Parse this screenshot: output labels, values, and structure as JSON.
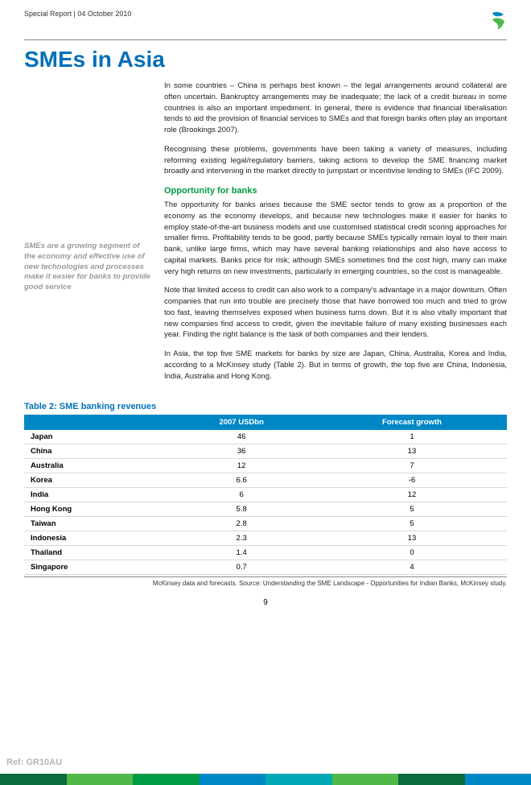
{
  "header": {
    "report_line": "Special Report | 04 October 2010"
  },
  "title": "SMEs in Asia",
  "sidebar": {
    "quote": "SMEs are a growing segment of the economy and effective use of new technologies and processes make it easier for banks to provide good service"
  },
  "body": {
    "p1": "In some countries – China is perhaps best known – the legal arrangements around collateral are often uncertain. Bankruptcy arrangements may be inadequate; the lack of a credit bureau in some countries is also an important impediment. In general, there is evidence that financial liberalisation tends to aid the provision of financial services to SMEs and that foreign banks often play an important role (Brookings 2007).",
    "p2": "Recognising these problems, governments have been taking a variety of measures, including reforming existing legal/regulatory barriers, taking actions to develop the SME financing market broadly and intervening in the market directly to jumpstart or incentivise lending to SMEs (IFC 2009).",
    "h1": "Opportunity for banks",
    "p3": "The opportunity for banks arises because the SME sector tends to grow as a proportion of the economy as the economy develops, and because new technologies make it easier for banks to employ state-of-the-art business models and use customised statistical credit scoring approaches for smaller firms. Profitability tends to be good, partly because SMEs typically remain loyal to their main bank, unlike large firms, which may have several banking relationships and also have access to capital markets. Banks price for risk; although SMEs sometimes find the cost high, many can make very high returns on new investments, particularly in emerging countries, so the cost is manageable.",
    "p4": "Note that limited access to credit can also work to a company's advantage in a major downturn. Often companies that run into trouble are precisely those that have borrowed too much and tried to grow too fast, leaving themselves exposed when business turns down. But it is also vitally important that new companies find access to credit, given the inevitable failure of many existing businesses each year. Finding the right balance is the task of both companies and their lenders.",
    "p5": "In Asia, the top five SME markets for banks by size are Japan, China, Australia, Korea and India, according to a McKinsey study (Table 2). But in terms of growth, the top five are China, Indonesia, India, Australia and Hong Kong."
  },
  "table": {
    "title": "Table 2: SME banking revenues",
    "header_bg": "#0088c6",
    "header_fg": "#ffffff",
    "row_border": "#d8d8d8",
    "columns": [
      "",
      "2007 USDbn",
      "Forecast growth"
    ],
    "rows": [
      [
        "Japan",
        "46",
        "1"
      ],
      [
        "China",
        "36",
        "13"
      ],
      [
        "Australia",
        "12",
        "7"
      ],
      [
        "Korea",
        "6.6",
        "-6"
      ],
      [
        "India",
        "6",
        "12"
      ],
      [
        "Hong Kong",
        "5.8",
        "5"
      ],
      [
        "Taiwan",
        "2.8",
        "5"
      ],
      [
        "Indonesia",
        "2.3",
        "13"
      ],
      [
        "Thailand",
        "1.4",
        "0"
      ],
      [
        "Singapore",
        "0.7",
        "4"
      ]
    ],
    "source": "McKinsey data and forecasts. Source: Understanding the SME Landscape - Opportunities for Indian Banks, McKinsey study."
  },
  "footer": {
    "page": "9",
    "ref": "Ref: GR10AU",
    "bar_colors": [
      "#0a6b3d",
      "#4fb848",
      "#009a44",
      "#0088c6",
      "#00a9b5",
      "#4fb848",
      "#0a6b3d",
      "#0088c6"
    ]
  },
  "logo": {
    "top_color": "#0088c6",
    "bottom_color": "#4fb848"
  },
  "colors": {
    "title": "#0070b8",
    "section_heading": "#009a44",
    "quote_text": "#9a9a9a"
  }
}
